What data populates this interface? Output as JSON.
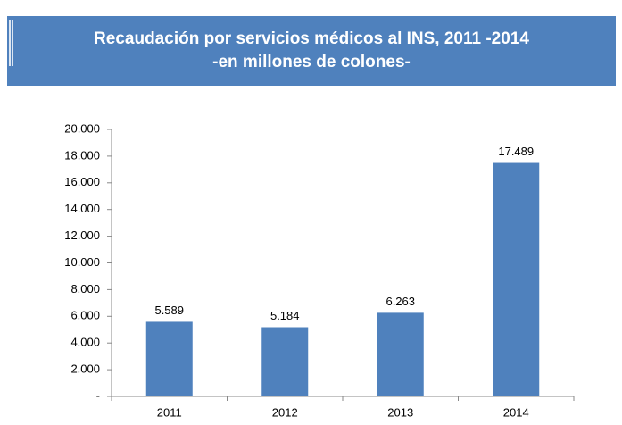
{
  "chart_data": {
    "type": "bar",
    "title": "Recaudación por servicios médicos al INS, 2011 -2014",
    "subtitle": "-en millones de colones-",
    "categories": [
      "2011",
      "2012",
      "2013",
      "2014"
    ],
    "values": [
      5589,
      5184,
      6263,
      17489
    ],
    "value_labels": [
      "5.589",
      "5.184",
      "6.263",
      "17.489"
    ],
    "color": "#4f81bd",
    "ylim": [
      0,
      20000
    ],
    "yticks": [
      {
        "value": 0,
        "label": "-"
      },
      {
        "value": 2000,
        "label": "2.000"
      },
      {
        "value": 4000,
        "label": "4.000"
      },
      {
        "value": 6000,
        "label": "6.000"
      },
      {
        "value": 8000,
        "label": "8.000"
      },
      {
        "value": 10000,
        "label": "10.000"
      },
      {
        "value": 12000,
        "label": "12.000"
      },
      {
        "value": 14000,
        "label": "14.000"
      },
      {
        "value": 16000,
        "label": "16.000"
      },
      {
        "value": 18000,
        "label": "18.000"
      },
      {
        "value": 20000,
        "label": "20.000"
      }
    ],
    "grid": false
  }
}
